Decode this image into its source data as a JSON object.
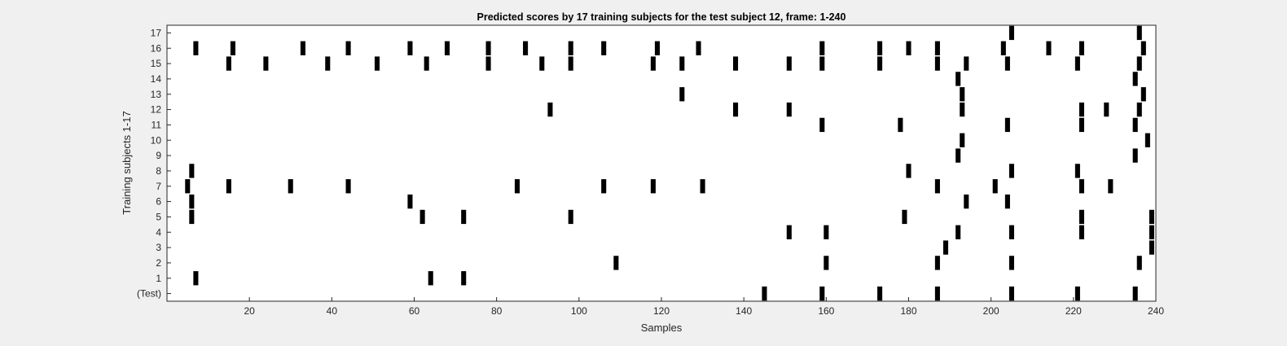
{
  "chart_data": {
    "type": "raster",
    "title": "Predicted scores by 17 training subjects for the test subject 12, frame: 1-240",
    "xlabel": "Samples",
    "ylabel": "Training subjects 1-17",
    "xlim": [
      0,
      240
    ],
    "xticks": [
      20,
      40,
      60,
      80,
      100,
      120,
      140,
      160,
      180,
      200,
      220,
      240
    ],
    "ylim": [
      -0.5,
      17.5
    ],
    "ytick_labels": [
      "(Test)",
      "1",
      "2",
      "3",
      "4",
      "5",
      "6",
      "7",
      "8",
      "9",
      "10",
      "11",
      "12",
      "13",
      "14",
      "15",
      "16",
      "17"
    ],
    "mark_color": "#000000",
    "background": "#ffffff",
    "rows": [
      {
        "row": 0,
        "label": "(Test)",
        "events": [
          145,
          159,
          173,
          187,
          205,
          221,
          235
        ]
      },
      {
        "row": 1,
        "label": "1",
        "events": [
          7,
          64,
          72
        ]
      },
      {
        "row": 2,
        "label": "2",
        "events": [
          109,
          160,
          187,
          205,
          236
        ]
      },
      {
        "row": 3,
        "label": "3",
        "events": [
          189,
          239
        ]
      },
      {
        "row": 4,
        "label": "4",
        "events": [
          151,
          160,
          192,
          205,
          222,
          239
        ]
      },
      {
        "row": 5,
        "label": "5",
        "events": [
          6,
          62,
          72,
          98,
          179,
          222,
          239
        ]
      },
      {
        "row": 6,
        "label": "6",
        "events": [
          6,
          59,
          194,
          204
        ]
      },
      {
        "row": 7,
        "label": "7",
        "events": [
          5,
          15,
          30,
          44,
          85,
          106,
          118,
          130,
          187,
          201,
          222,
          229
        ]
      },
      {
        "row": 8,
        "label": "8",
        "events": [
          6,
          180,
          205,
          221
        ]
      },
      {
        "row": 9,
        "label": "9",
        "events": [
          192,
          235
        ]
      },
      {
        "row": 10,
        "label": "10",
        "events": [
          193,
          238
        ]
      },
      {
        "row": 11,
        "label": "11",
        "events": [
          159,
          178,
          204,
          222,
          235
        ]
      },
      {
        "row": 12,
        "label": "12",
        "events": [
          93,
          138,
          151,
          193,
          222,
          228,
          236
        ]
      },
      {
        "row": 13,
        "label": "13",
        "events": [
          125,
          193,
          237
        ]
      },
      {
        "row": 14,
        "label": "14",
        "events": [
          192,
          235
        ]
      },
      {
        "row": 15,
        "label": "15",
        "events": [
          15,
          24,
          39,
          51,
          63,
          78,
          91,
          98,
          118,
          125,
          138,
          151,
          159,
          173,
          187,
          194,
          204,
          221,
          236
        ]
      },
      {
        "row": 16,
        "label": "16",
        "events": [
          7,
          16,
          33,
          44,
          59,
          68,
          78,
          87,
          98,
          106,
          119,
          129,
          159,
          173,
          180,
          187,
          203,
          214,
          222,
          237
        ]
      },
      {
        "row": 17,
        "label": "17",
        "events": [
          205,
          236
        ]
      }
    ]
  }
}
